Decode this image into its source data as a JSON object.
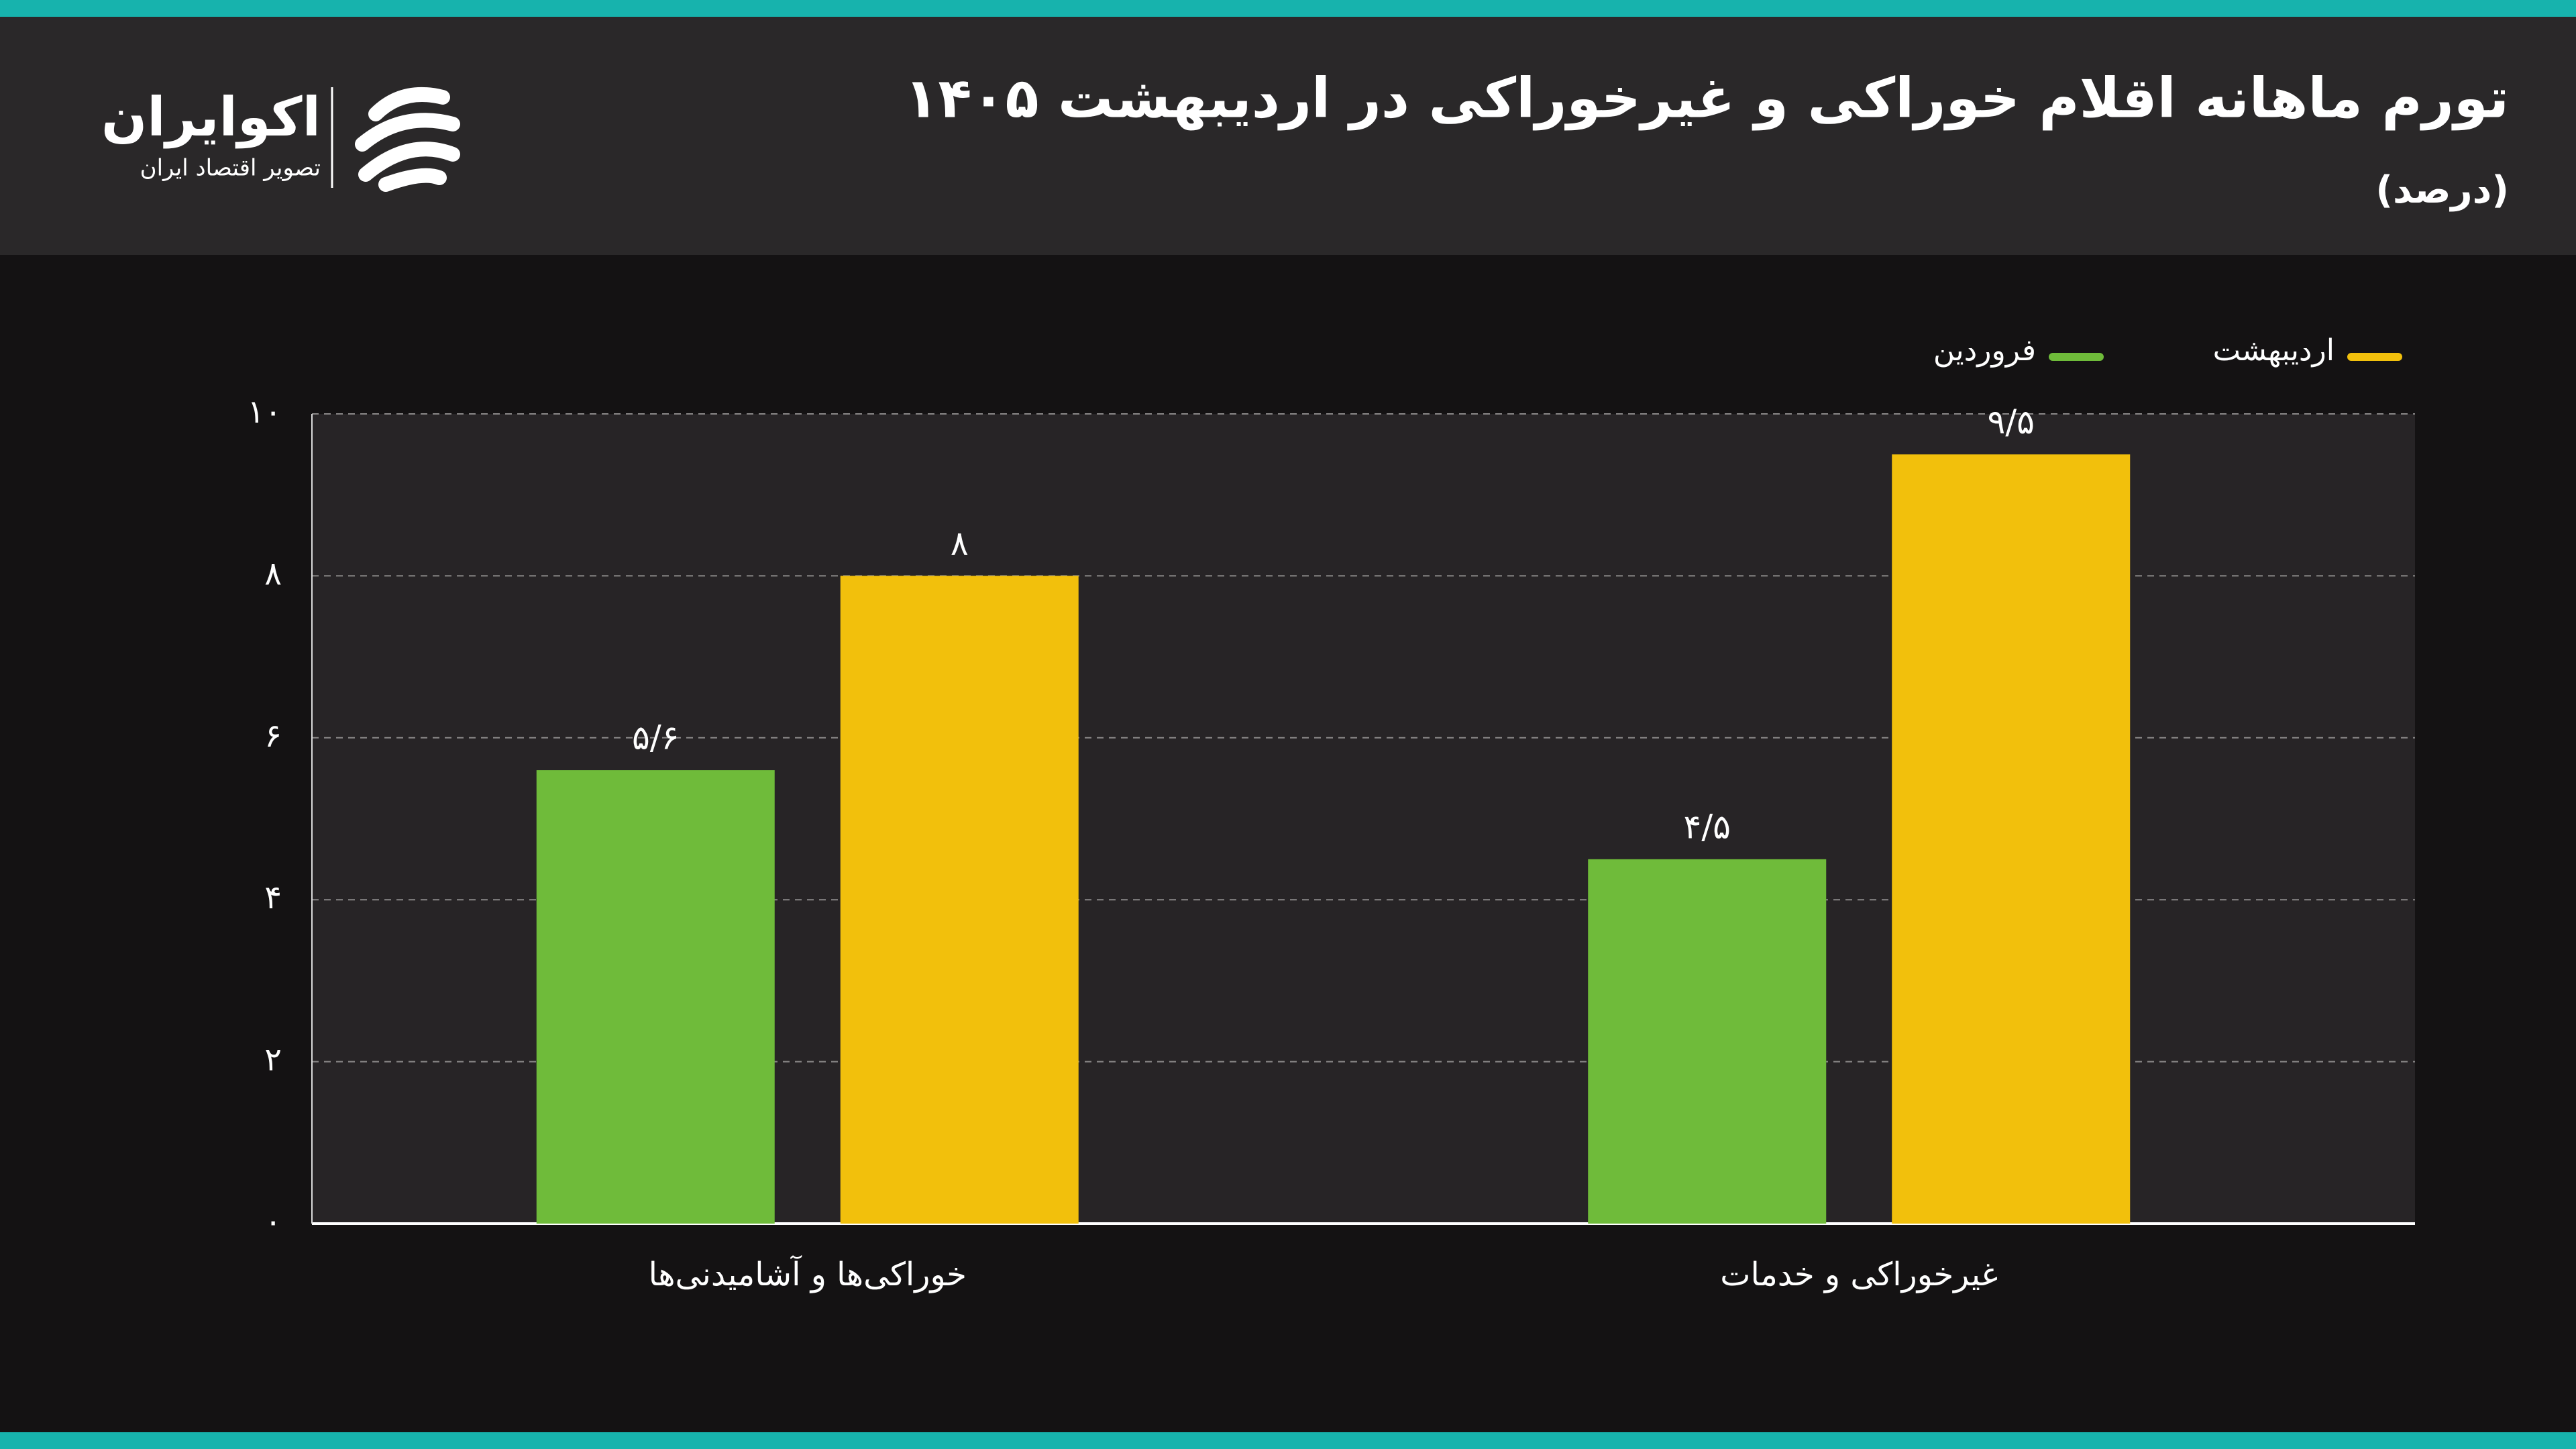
{
  "logo": {
    "name": "اکوایران",
    "tagline": "تصویر اقتصاد ایران"
  },
  "chart_data": {
    "type": "bar",
    "title": "تورم ماهانه اقلام خوراکی و غیرخوراکی در اردیبهشت ۱۴۰۵",
    "subtitle": "(درصد)",
    "categories": [
      "خوراکی‌ها و آشامیدنی‌ها",
      "غیرخوراکی و خدمات"
    ],
    "series": [
      {
        "name": "فروردین",
        "color": "#6fbb3a",
        "values": [
          5.6,
          4.5
        ],
        "value_labels": [
          "۵/۶",
          "۴/۵"
        ]
      },
      {
        "name": "اردیبهشت",
        "color": "#f2c00c",
        "values": [
          8,
          9.5
        ],
        "value_labels": [
          "۸",
          "۹/۵"
        ]
      }
    ],
    "ylim": [
      0,
      10
    ],
    "yticks": [
      {
        "value": 0,
        "label": "۰"
      },
      {
        "value": 2,
        "label": "۲"
      },
      {
        "value": 4,
        "label": "۴"
      },
      {
        "value": 6,
        "label": "۶"
      },
      {
        "value": 8,
        "label": "۸"
      },
      {
        "value": 10,
        "label": "۱۰"
      }
    ],
    "grid": true
  }
}
